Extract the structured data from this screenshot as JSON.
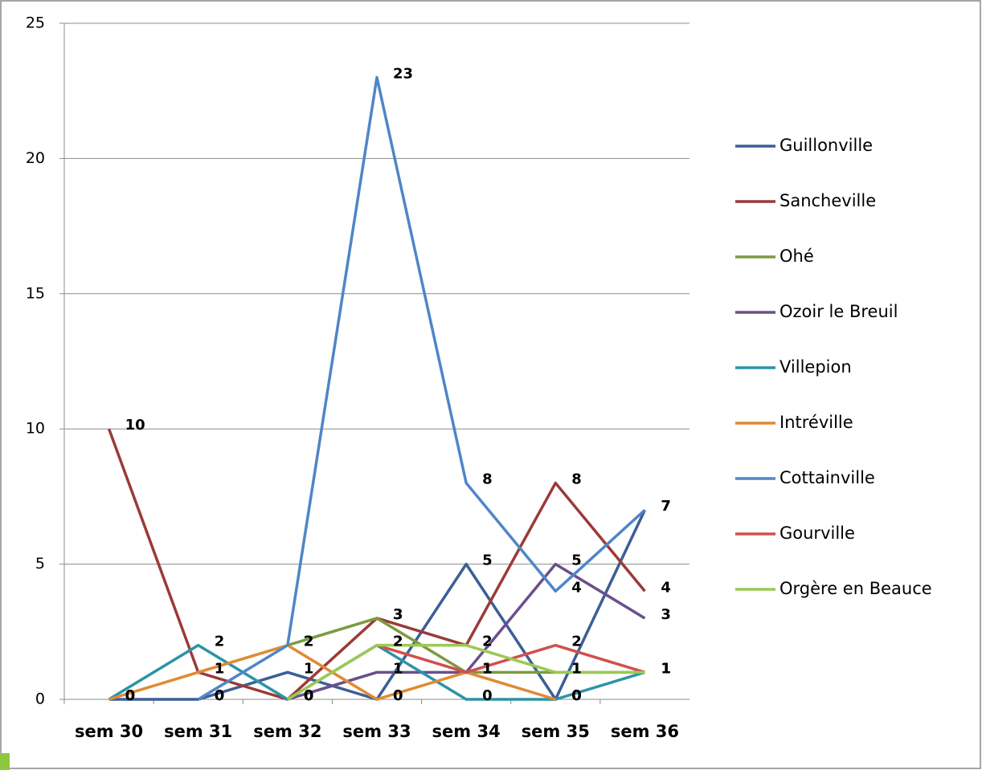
{
  "chart_data": {
    "type": "line",
    "categories": [
      "sem 30",
      "sem 31",
      "sem 32",
      "sem 33",
      "sem 34",
      "sem 35",
      "sem 36"
    ],
    "series": [
      {
        "name": "Guillonville",
        "color": "#3b5f95",
        "values": [
          0,
          0,
          1,
          0,
          5,
          0,
          7
        ]
      },
      {
        "name": "Sancheville",
        "color": "#9b3a38",
        "values": [
          10,
          1,
          0,
          3,
          2,
          8,
          4
        ]
      },
      {
        "name": "Ohé",
        "color": "#7d9a40",
        "values": [
          null,
          null,
          2,
          3,
          1,
          1,
          1
        ]
      },
      {
        "name": "Ozoir le Breuil",
        "color": "#6a4f8c",
        "values": [
          null,
          null,
          0,
          1,
          1,
          5,
          3
        ]
      },
      {
        "name": "Villepion",
        "color": "#2e93a6",
        "values": [
          0,
          2,
          0,
          2,
          0,
          0,
          1
        ]
      },
      {
        "name": "Intréville",
        "color": "#e08a33",
        "values": [
          0,
          1,
          2,
          0,
          1,
          0,
          null
        ]
      },
      {
        "name": "Cottainville",
        "color": "#4f86c6",
        "values": [
          null,
          0,
          2,
          23,
          8,
          4,
          7
        ]
      },
      {
        "name": "Gourville",
        "color": "#d0504e",
        "values": [
          null,
          null,
          null,
          2,
          1,
          2,
          1
        ]
      },
      {
        "name": "Orgère en Beauce",
        "color": "#9bc953",
        "values": [
          null,
          null,
          0,
          2,
          2,
          1,
          1
        ]
      }
    ],
    "ylim": [
      0,
      25
    ],
    "yticks": [
      0,
      5,
      10,
      15,
      20,
      25
    ],
    "grid": true,
    "legend": "right"
  }
}
